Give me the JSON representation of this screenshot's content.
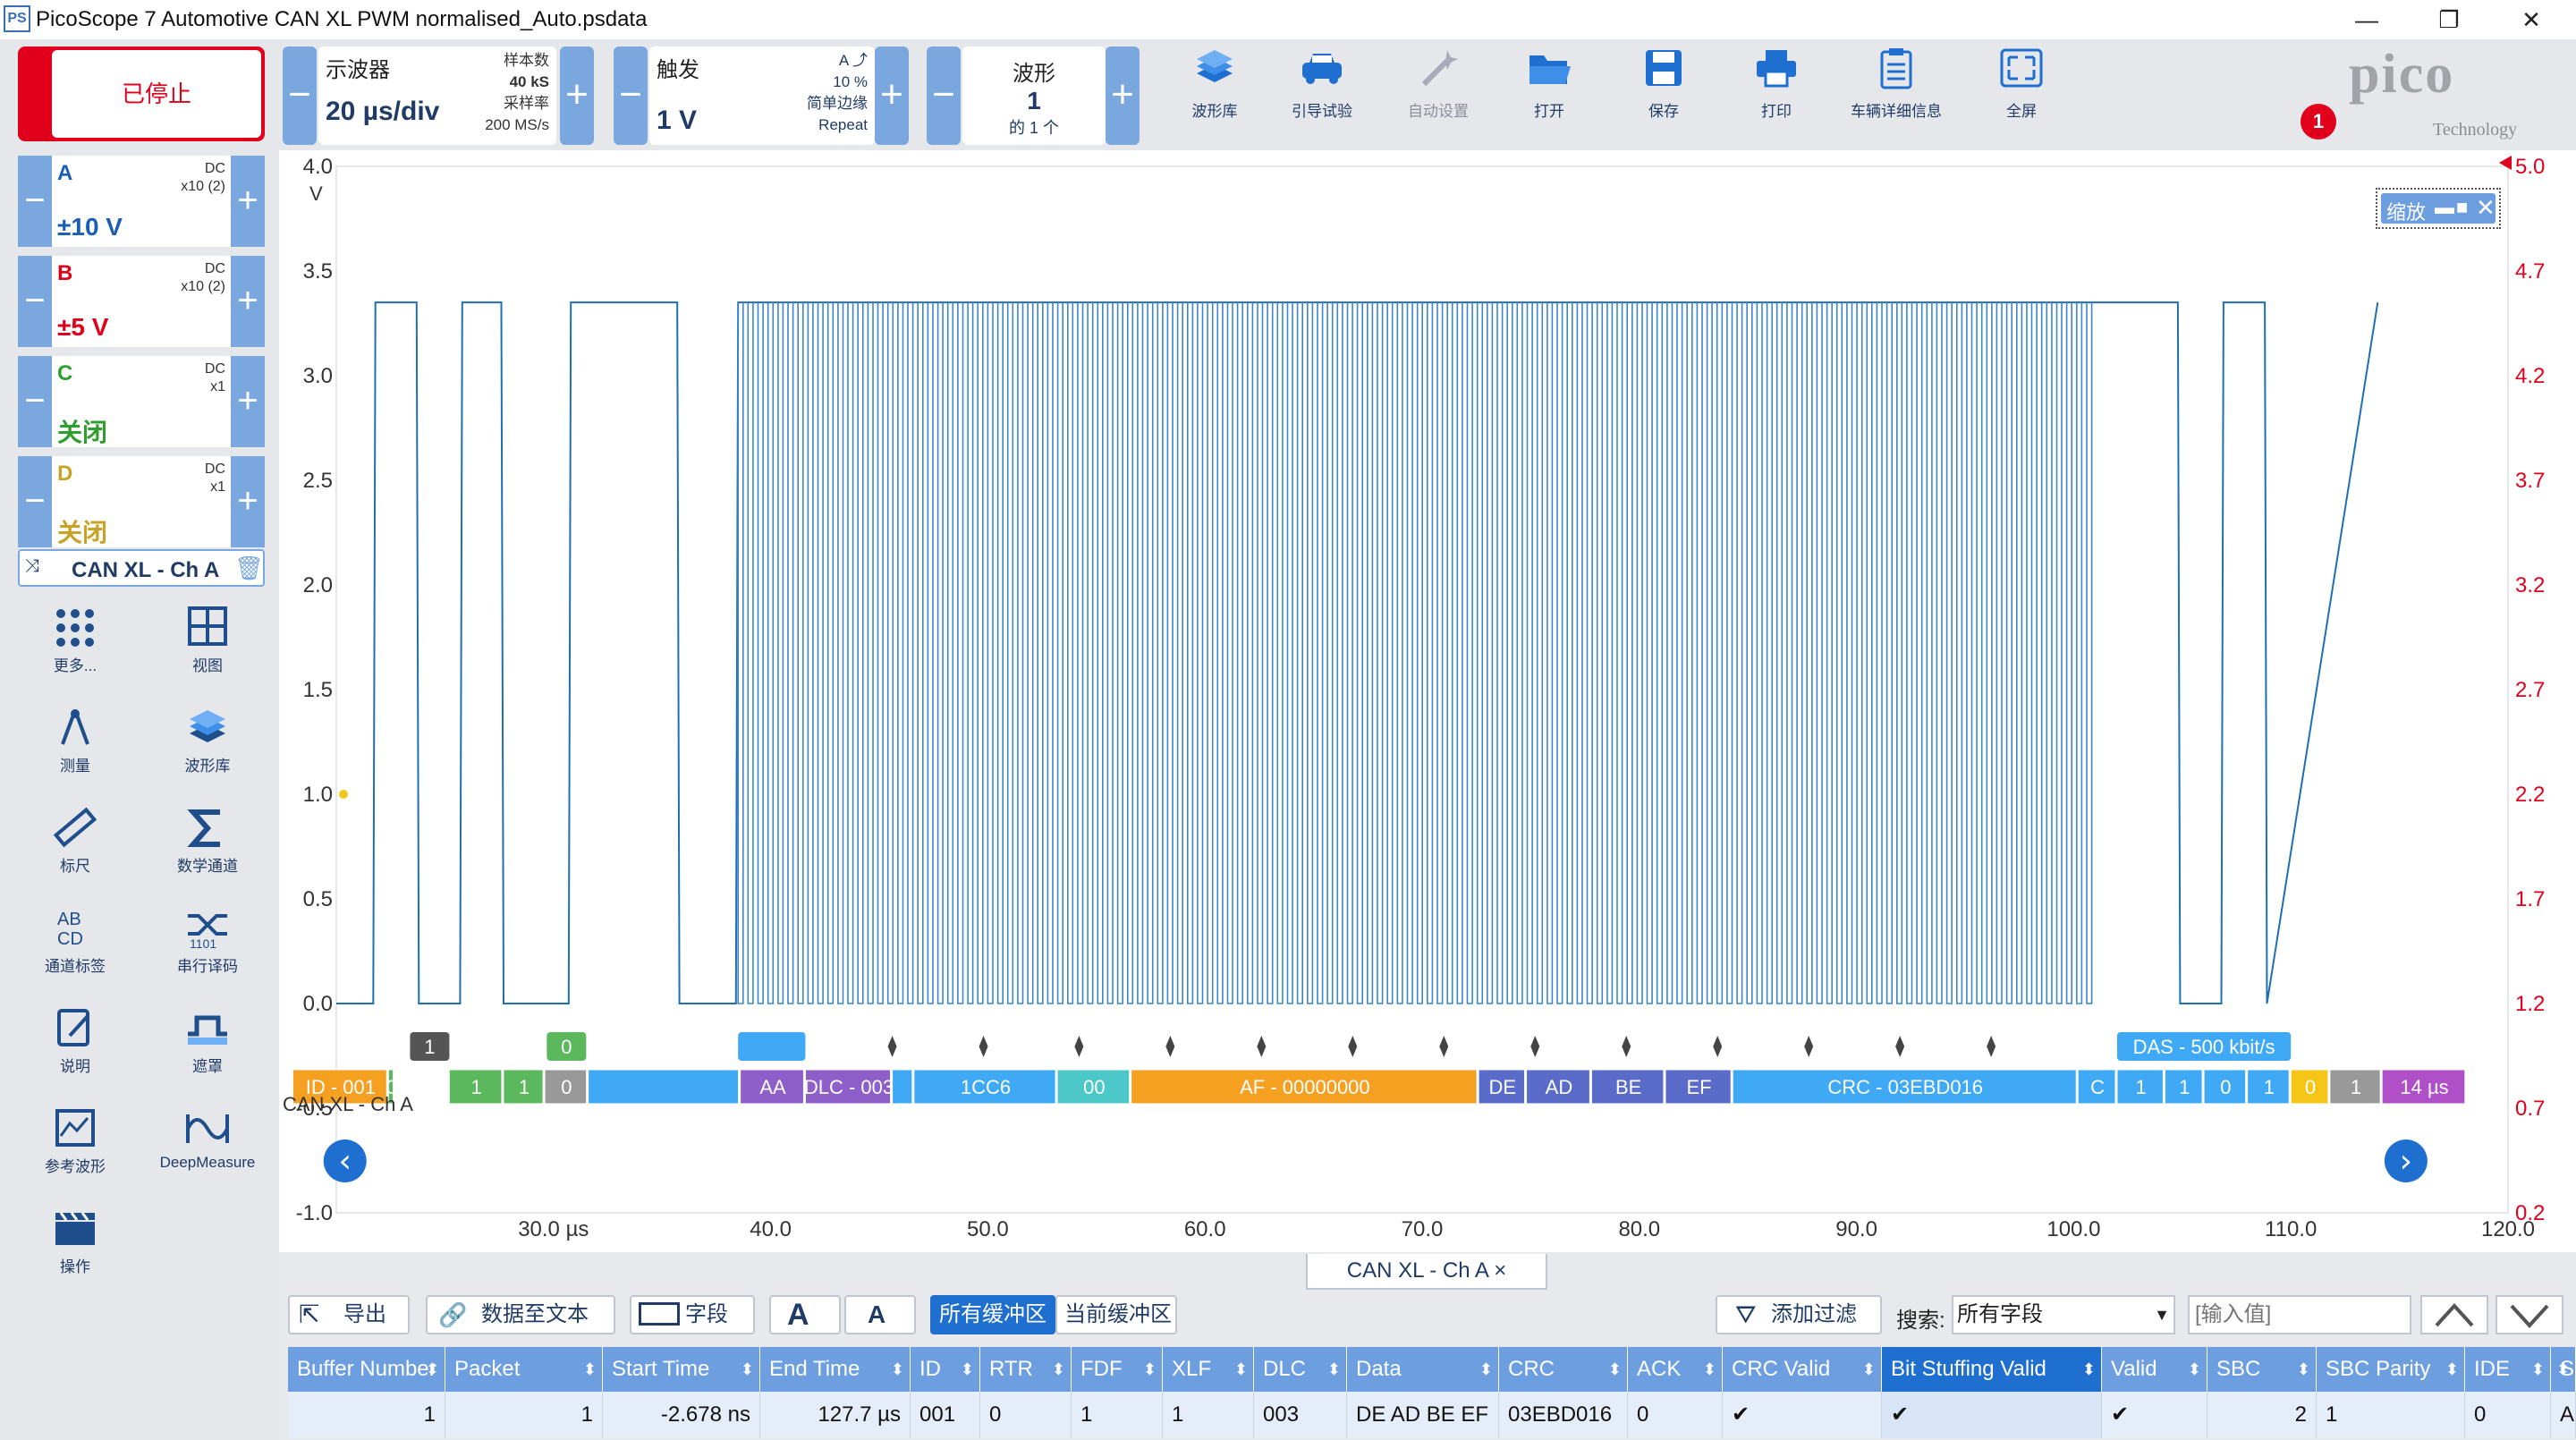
{
  "window": {
    "title": "PicoScope 7 Automotive CAN XL PWM normalised_Auto.psdata",
    "app_icon": "PS",
    "minimize": "—",
    "restore": "❐",
    "close": "✕"
  },
  "toolbar": {
    "stop_label": "已停止",
    "scope": {
      "title": "示波器",
      "timebase": "20 µs/div",
      "samples_label": "样本数",
      "samples": "40 kS",
      "rate_label": "采样率",
      "rate": "200 MS/s"
    },
    "trigger": {
      "title": "触发",
      "level": "1 V",
      "channel": "A",
      "percent": "10 %",
      "mode": "简单边缘",
      "repeat": "Repeat"
    },
    "waveform": {
      "title": "波形",
      "number": "1",
      "of": "的 1 个"
    },
    "buttons": [
      {
        "label": "波形库",
        "icon": "stack-icon"
      },
      {
        "label": "引导试验",
        "icon": "car-icon"
      },
      {
        "label": "自动设置",
        "icon": "wand-icon"
      },
      {
        "label": "打开",
        "icon": "folder-icon"
      },
      {
        "label": "保存",
        "icon": "save-icon"
      },
      {
        "label": "打印",
        "icon": "printer-icon"
      },
      {
        "label": "车辆详细信息",
        "icon": "clipboard-icon"
      },
      {
        "label": "全屏",
        "icon": "fullscreen-icon"
      }
    ],
    "badge": "1",
    "logo": "pico",
    "logo_sub": "Technology"
  },
  "channels": [
    {
      "name": "A",
      "coupling": "DC",
      "probe": "x10 (2)",
      "range": "±10 V",
      "color": "#1a5fb4"
    },
    {
      "name": "B",
      "coupling": "DC",
      "probe": "x10 (2)",
      "range": "±5 V",
      "color": "#e0001b"
    },
    {
      "name": "C",
      "coupling": "DC",
      "probe": "x1",
      "range": "关闭",
      "color": "#2e9e2e"
    },
    {
      "name": "D",
      "coupling": "DC",
      "probe": "x1",
      "range": "关闭",
      "color": "#c9a227"
    }
  ],
  "decoder_label": "CAN XL - Ch A",
  "tools": [
    {
      "label": "更多...",
      "icon": "dots-grid-icon"
    },
    {
      "label": "视图",
      "icon": "view-grid-icon"
    },
    {
      "label": "测量",
      "icon": "compass-icon"
    },
    {
      "label": "波形库",
      "icon": "stack-icon"
    },
    {
      "label": "标尺",
      "icon": "ruler-icon"
    },
    {
      "label": "数学通道",
      "icon": "sigma-icon"
    },
    {
      "label": "通道标签",
      "icon": "abcd-icon"
    },
    {
      "label": "串行译码",
      "icon": "serial-decode-icon"
    },
    {
      "label": "说明",
      "icon": "note-icon"
    },
    {
      "label": "遮罩",
      "icon": "mask-icon"
    },
    {
      "label": "参考波形",
      "icon": "reference-icon"
    },
    {
      "label": "DeepMeasure",
      "icon": "deepmeasure-icon"
    },
    {
      "label": "操作",
      "icon": "clapper-icon"
    }
  ],
  "plot": {
    "left_axis": [
      "4.0",
      "3.5",
      "3.0",
      "2.5",
      "2.0",
      "1.5",
      "1.0",
      "0.5",
      "0.0",
      "-0.5",
      "-1.0"
    ],
    "left_unit": "V",
    "right_axis": [
      "5.0",
      "4.7",
      "4.2",
      "3.7",
      "3.2",
      "2.7",
      "2.2",
      "1.7",
      "1.2",
      "0.7",
      "0.2"
    ],
    "x_axis": [
      "30.0 µs",
      "40.0",
      "50.0",
      "60.0",
      "70.0",
      "80.0",
      "90.0",
      "100.0",
      "110.0",
      "120.0"
    ],
    "zoom_label": "缩放",
    "decode_name": "CAN XL - Ch A",
    "das_label": "DAS - 500 kbit/s",
    "top_markers": [
      "1",
      "0"
    ],
    "segments": [
      {
        "text": "ID - 001",
        "color": "#f5a020"
      },
      {
        "text": "0",
        "color": "#5cb85c"
      },
      {
        "text": "",
        "color": "#ffffff"
      },
      {
        "text": "1",
        "color": "#5cb85c"
      },
      {
        "text": "1",
        "color": "#5cb85c"
      },
      {
        "text": "0",
        "color": "#999999"
      },
      {
        "text": "",
        "color": "#3fa9f5"
      },
      {
        "text": "AA",
        "color": "#8e5ec9"
      },
      {
        "text": "DLC - 003",
        "color": "#8e5ec9"
      },
      {
        "text": "",
        "color": "#3fa9f5"
      },
      {
        "text": "1CC6",
        "color": "#3fa9f5"
      },
      {
        "text": "00",
        "color": "#4dc8c8"
      },
      {
        "text": "AF - 00000000",
        "color": "#f5a020"
      },
      {
        "text": "DE",
        "color": "#5a6bc9"
      },
      {
        "text": "AD",
        "color": "#5a6bc9"
      },
      {
        "text": "BE",
        "color": "#5a6bc9"
      },
      {
        "text": "EF",
        "color": "#5a6bc9"
      },
      {
        "text": "CRC - 03EBD016",
        "color": "#3fa9f5"
      },
      {
        "text": "C",
        "color": "#3fa9f5"
      },
      {
        "text": "1",
        "color": "#3fa9f5"
      },
      {
        "text": "1",
        "color": "#3fa9f5"
      },
      {
        "text": "0",
        "color": "#3fa9f5"
      },
      {
        "text": "1",
        "color": "#3fa9f5"
      },
      {
        "text": "0",
        "color": "#f5c518"
      },
      {
        "text": "1",
        "color": "#999999"
      },
      {
        "text": "14 µs",
        "color": "#b050c8"
      }
    ]
  },
  "chart_data": {
    "type": "line",
    "title": "",
    "xlabel": "",
    "ylabel": "V",
    "xlim": [
      20,
      120
    ],
    "ylim": [
      -1.0,
      4.0
    ],
    "series": [
      {
        "values_note": "",
        "x": [
          20,
          21.7,
          21.8,
          23.7,
          23.8,
          25.7,
          25.8,
          27.6,
          27.7,
          30.7,
          30.8,
          35.7,
          35.8,
          38.4,
          38.5,
          100.7,
          100.8,
          104.8,
          104.9,
          106.8,
          106.9,
          108.8,
          108.9,
          114
        ],
        "y": [
          0,
          0,
          3.35,
          3.35,
          0,
          0,
          3.35,
          3.35,
          0,
          0,
          3.35,
          3.35,
          0,
          0,
          3.35,
          3.35,
          3.35,
          3.35,
          0,
          0,
          3.35,
          3.35,
          0,
          3.35
        ]
      }
    ]
  },
  "tab": {
    "label": "CAN XL - Ch A",
    "close": "×"
  },
  "panel": {
    "export": "导出",
    "to_text": "数据至文本",
    "fields": "字段",
    "font_up": "A",
    "font_down": "A",
    "all_buffers": "所有缓冲区",
    "current_buffer": "当前缓冲区",
    "add_filter": "添加过滤",
    "search_label": "搜索:",
    "search_field": "所有字段",
    "search_placeholder": "[输入值]"
  },
  "table": {
    "columns": [
      "Buffer Number",
      "Packet",
      "Start Time",
      "End Time",
      "ID",
      "RTR",
      "FDF",
      "XLF",
      "DLC",
      "Data",
      "CRC",
      "ACK",
      "CRC Valid",
      "Bit Stuffing Valid",
      "Valid",
      "SBC",
      "SBC Parity",
      "IDE",
      "S"
    ],
    "rows": [
      [
        "1",
        "1",
        "-2.678 ns",
        "127.7 µs",
        "001",
        "0",
        "1",
        "1",
        "003",
        "DE AD BE EF",
        "03EBD016",
        "0",
        "✔",
        "✔",
        "✔",
        "2",
        "1",
        "0",
        "A"
      ]
    ]
  }
}
